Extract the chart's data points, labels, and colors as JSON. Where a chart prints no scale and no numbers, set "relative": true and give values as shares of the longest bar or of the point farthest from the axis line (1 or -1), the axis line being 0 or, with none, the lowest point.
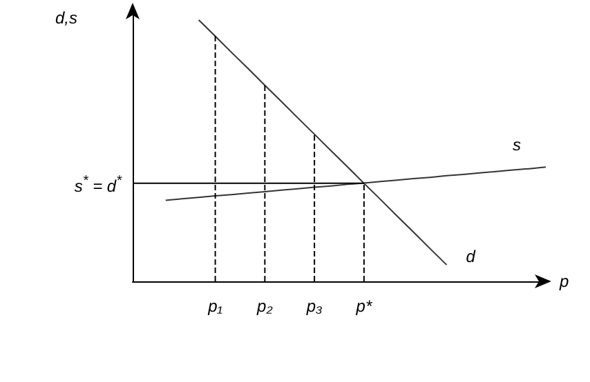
{
  "chart_data": {
    "type": "line",
    "relative": true,
    "xlabel": "p",
    "ylabel": "d,s",
    "categories": [
      null,
      null,
      null,
      null,
      null,
      "p₁",
      null,
      null,
      "p₂",
      null,
      null,
      "p₃",
      null,
      null,
      "p*",
      null,
      null,
      null,
      null,
      null,
      null,
      null,
      null,
      null,
      null,
      null
    ],
    "grid": false,
    "legend": false,
    "marker": "none",
    "series": [
      {
        "name": "d",
        "color": "#333333",
        "values": [
          null,
          null,
          null,
          null,
          1,
          0.938,
          0.875,
          0.813,
          0.75,
          0.688,
          0.625,
          0.563,
          0.5,
          0.438,
          0.375,
          0.313,
          0.25,
          0.188,
          0.125,
          0.063,
          null,
          null,
          null,
          null,
          null,
          null
        ]
      },
      {
        "name": "s",
        "color": "#333333",
        "values": [
          null,
          null,
          0.31,
          0.316,
          0.321,
          0.327,
          0.332,
          0.338,
          0.343,
          0.349,
          0.354,
          0.36,
          0.365,
          0.371,
          0.376,
          0.382,
          0.387,
          0.393,
          0.398,
          0.404,
          0.409,
          0.415,
          0.42,
          0.426,
          0.431,
          0.437
        ]
      },
      {
        "color": "#000000",
        "values": [
          0.375,
          0.375,
          0.375,
          0.375,
          0.375,
          0.375,
          0.375,
          0.375,
          0.375,
          0.375,
          0.375,
          0.375,
          0.375,
          0.375,
          0.375,
          null,
          null,
          null,
          null,
          null,
          null,
          null,
          null,
          null,
          null,
          null
        ]
      },
      {
        "color": "#000000",
        "line_style": "dashed",
        "x": [
          "p₁",
          "p₁"
        ],
        "values": [
          0,
          0.94
        ]
      },
      {
        "color": "#000000",
        "line_style": "dashed",
        "x": [
          "p₂",
          "p₂"
        ],
        "values": [
          0,
          0.75
        ]
      },
      {
        "color": "#000000",
        "line_style": "dashed",
        "x": [
          "p₃",
          "p₃"
        ],
        "values": [
          0,
          0.563
        ]
      },
      {
        "color": "#000000",
        "line_style": "dashed",
        "x": [
          "p*",
          "p*"
        ],
        "values": [
          0,
          0.375
        ]
      }
    ],
    "annotations": [
      "s$^{*}$ = d$^{*}$"
    ]
  }
}
